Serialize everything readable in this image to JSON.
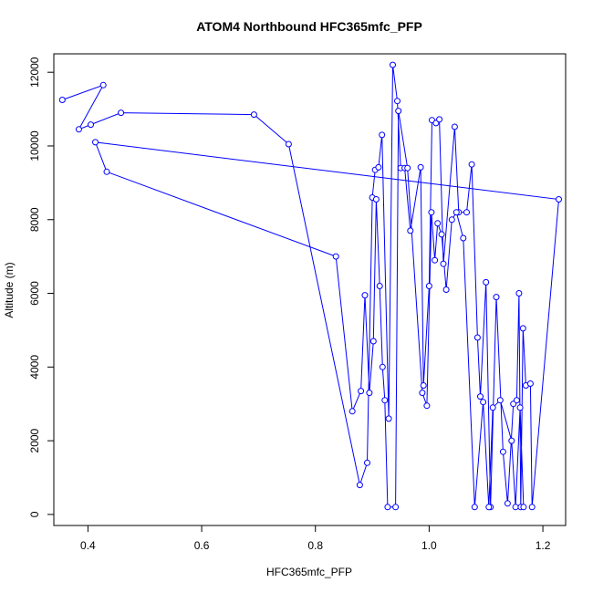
{
  "chart_data": {
    "type": "line",
    "title": "ATOM4 Northbound HFC365mfc_PFP",
    "xlabel": "HFC365mfc_PFP",
    "ylabel": "Altitude (m)",
    "xlim": [
      0.34,
      1.24
    ],
    "ylim": [
      -300,
      12500
    ],
    "x_ticks": [
      0.4,
      0.6,
      0.8,
      1.0,
      1.2
    ],
    "x_tick_labels": [
      "0.4",
      "0.6",
      "0.8",
      "1.0",
      "1.2"
    ],
    "y_ticks": [
      0,
      2000,
      4000,
      6000,
      8000,
      10000,
      12000
    ],
    "y_tick_labels": [
      "0",
      "2000",
      "4000",
      "6000",
      "8000",
      "10000",
      "12000"
    ],
    "grid": false,
    "legend": "none",
    "line_color": "#0000ff",
    "marker": "open-circle",
    "series": [
      {
        "x": [
          0.355,
          0.427,
          0.384,
          0.405,
          0.458,
          0.692,
          0.753,
          0.878,
          0.891,
          0.9,
          0.905,
          0.911,
          0.917,
          0.929,
          0.936,
          0.944,
          0.95,
          0.957,
          0.967,
          0.985,
          0.99,
          1.0,
          1.005,
          1.012,
          1.018,
          1.025,
          1.045,
          1.052,
          1.066,
          1.075,
          1.085,
          1.09,
          1.1,
          1.108,
          1.118,
          1.13,
          1.138,
          1.148,
          1.154,
          1.158,
          1.161,
          1.165,
          1.17,
          1.178,
          1.181,
          1.228,
          0.413,
          0.433,
          0.836,
          0.865,
          0.88,
          0.887,
          0.895,
          0.902,
          0.907,
          0.913,
          0.918,
          0.922,
          0.927,
          0.941,
          0.946,
          0.962,
          0.988,
          0.996,
          1.004,
          1.01,
          1.015,
          1.022,
          1.03,
          1.04,
          1.048,
          1.06,
          1.08,
          1.095,
          1.105,
          1.112,
          1.125,
          1.145,
          1.152,
          1.16,
          1.166
        ],
        "y": [
          11250,
          11650,
          10450,
          10580,
          10900,
          10850,
          10050,
          800,
          1400,
          8600,
          9350,
          9420,
          10300,
          2600,
          12200,
          11220,
          9400,
          9400,
          7700,
          9420,
          3500,
          6200,
          10700,
          10620,
          10720,
          6800,
          10520,
          8200,
          8200,
          9500,
          4800,
          3200,
          6300,
          200,
          5900,
          1700,
          300,
          3000,
          3100,
          6000,
          200,
          5050,
          3500,
          3550,
          200,
          8550,
          10100,
          9300,
          7000,
          2800,
          3350,
          5950,
          3300,
          4700,
          8550,
          6200,
          4000,
          3100,
          200,
          200,
          10950,
          9400,
          3300,
          2950,
          8200,
          6900,
          7900,
          7600,
          6100,
          8000,
          8200,
          7500,
          200,
          3050,
          200,
          2900,
          3100,
          2000,
          200,
          2900,
          200
        ]
      }
    ]
  }
}
